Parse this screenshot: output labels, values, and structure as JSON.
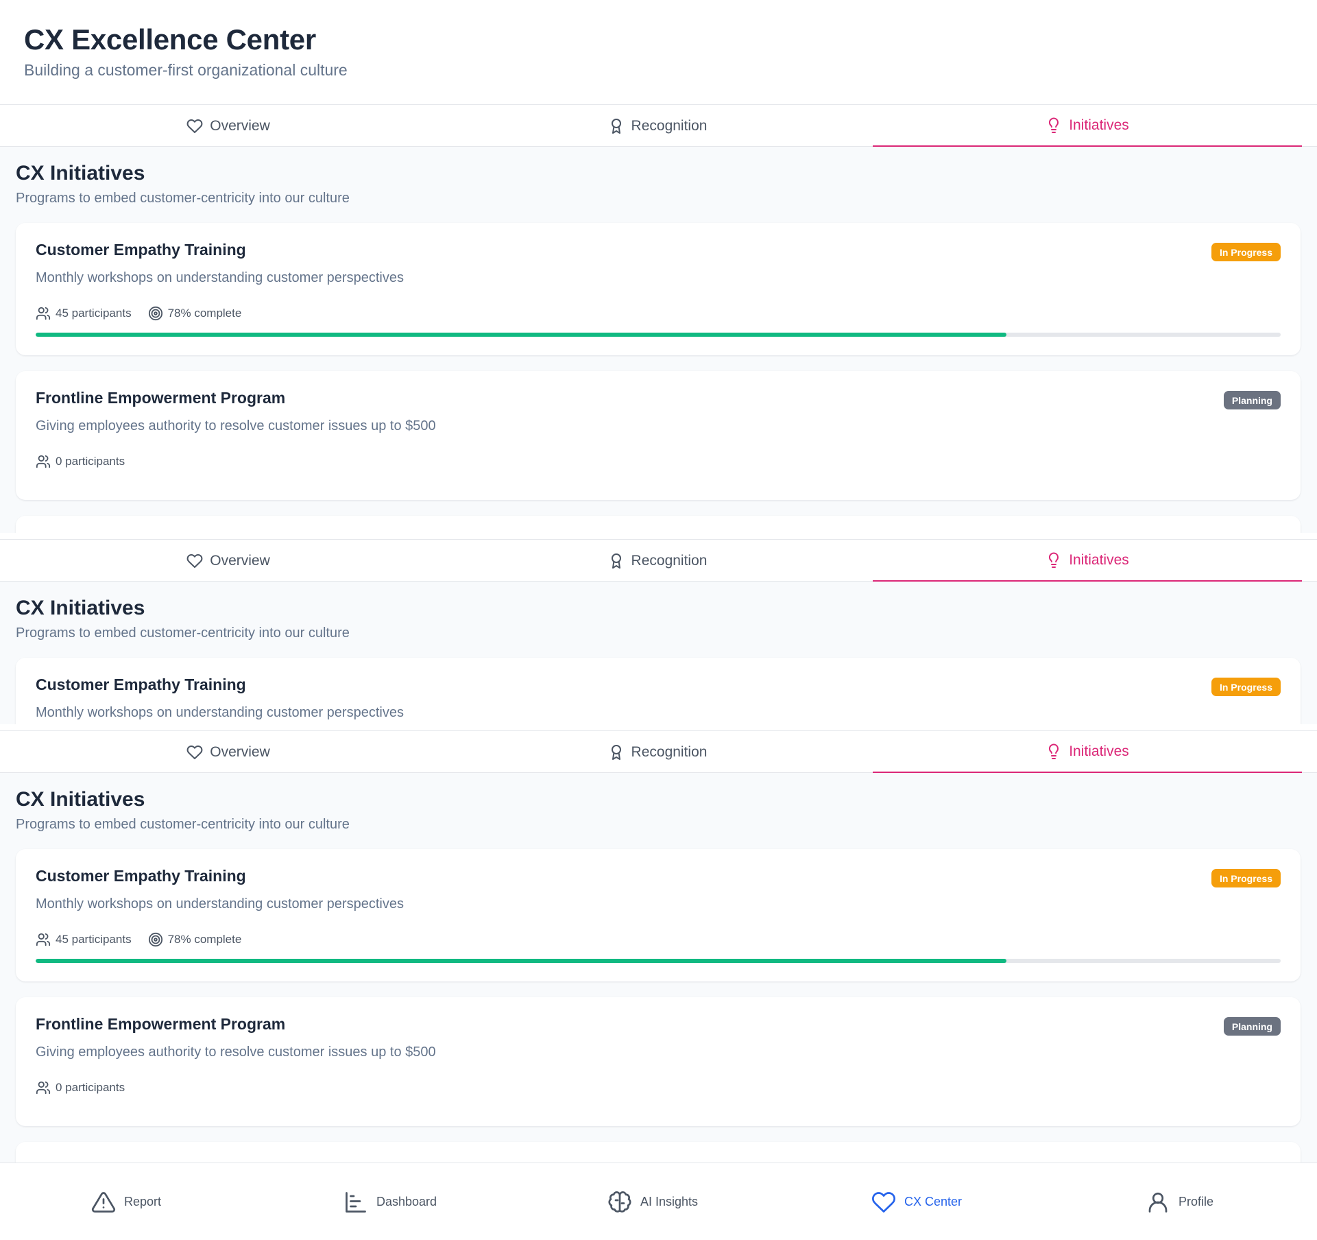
{
  "header": {
    "title": "CX Excellence Center",
    "subtitle": "Building a customer-first organizational culture"
  },
  "tabs": [
    {
      "label": "Overview",
      "icon": "heart-icon"
    },
    {
      "label": "Recognition",
      "icon": "award-icon"
    },
    {
      "label": "Initiatives",
      "icon": "lightbulb-icon",
      "active": true
    }
  ],
  "section": {
    "title": "CX Initiatives",
    "subtitle": "Programs to embed customer-centricity into our culture"
  },
  "initiatives": [
    {
      "title": "Customer Empathy Training",
      "description": "Monthly workshops on understanding customer perspectives",
      "status": "In Progress",
      "participants": "45 participants",
      "complete": "78% complete",
      "progress": 78
    },
    {
      "title": "Frontline Empowerment Program",
      "description": "Giving employees authority to resolve customer issues up to $500",
      "status": "Planning",
      "participants": "0 participants"
    }
  ],
  "colors": {
    "accent": "#db2777",
    "progress": "#10b981",
    "in_progress_badge": "#f59e0b",
    "planning_badge": "#6b7280",
    "nav_active": "#2563eb"
  },
  "nav": [
    {
      "label": "Report",
      "icon": "alert-triangle-icon"
    },
    {
      "label": "Dashboard",
      "icon": "bar-chart-icon"
    },
    {
      "label": "AI Insights",
      "icon": "brain-icon"
    },
    {
      "label": "CX Center",
      "icon": "heart-icon",
      "active": true
    },
    {
      "label": "Profile",
      "icon": "user-icon"
    }
  ]
}
